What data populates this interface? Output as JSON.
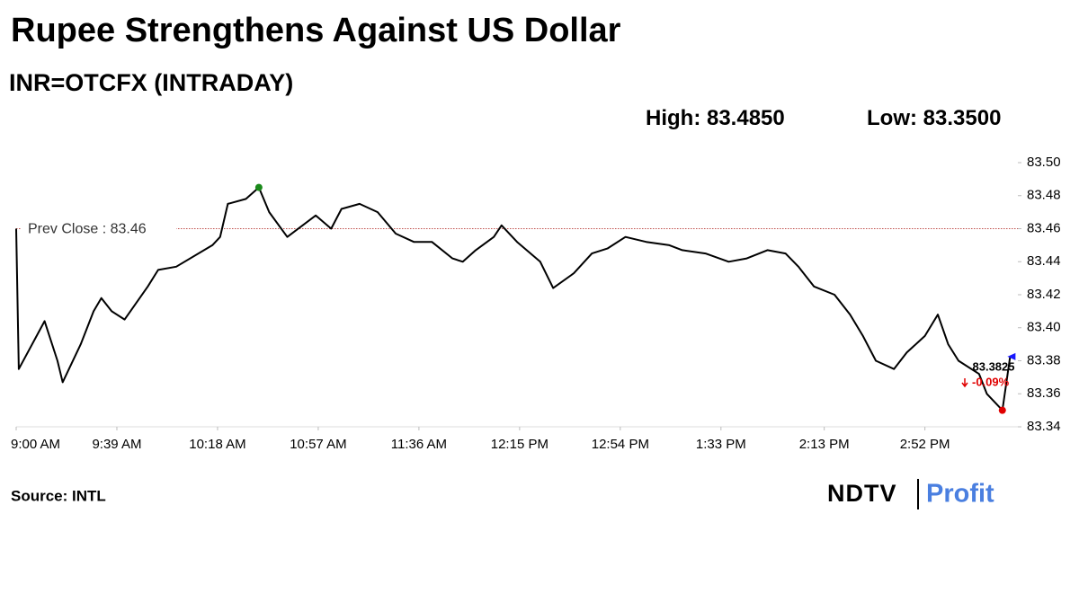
{
  "chart_data": {
    "type": "line",
    "title": "Rupee Strengthens Against US Dollar",
    "subtitle": "INR=OTCFX (INTRADAY)",
    "high": {
      "label": "High:",
      "value": 83.485,
      "value_label": "83.4850"
    },
    "low": {
      "label": "Low:",
      "value": 83.35,
      "value_label": "83.3500"
    },
    "prev_close": {
      "label": "Prev Close :",
      "value": 83.46,
      "value_label": "83.46"
    },
    "last": {
      "value": 83.3825,
      "value_label": "83.3825",
      "change": -0.09,
      "change_label": "-0.09%"
    },
    "x": [
      "9:00 AM",
      "9:01 AM",
      "9:11 AM",
      "9:16 AM",
      "9:18 AM",
      "9:25 AM",
      "9:30 AM",
      "9:33 AM",
      "9:37 AM",
      "9:42 AM",
      "9:51 AM",
      "9:55 AM",
      "10:02 AM",
      "10:16 AM",
      "10:19 AM",
      "10:22 AM",
      "10:29 AM",
      "10:34 AM",
      "10:38 AM",
      "10:45 AM",
      "10:56 AM",
      "11:02 AM",
      "11:06 AM",
      "11:13 AM",
      "11:20 AM",
      "11:27 AM",
      "11:34 AM",
      "11:41 AM",
      "11:49 AM",
      "11:53 AM",
      "11:58 AM",
      "12:05 PM",
      "12:08 PM",
      "12:14 PM",
      "12:23 PM",
      "12:28 PM",
      "12:36 PM",
      "12:43 PM",
      "12:49 PM",
      "12:56 PM",
      "1:04 PM",
      "1:13 PM",
      "1:18 PM",
      "1:27 PM",
      "1:36 PM",
      "1:43 PM",
      "1:51 PM",
      "1:58 PM",
      "2:03 PM",
      "2:09 PM",
      "2:17 PM",
      "2:23 PM",
      "2:28 PM",
      "2:33 PM",
      "2:40 PM",
      "2:45 PM",
      "2:52 PM",
      "2:57 PM",
      "3:01 PM",
      "3:05 PM",
      "3:13 PM",
      "3:16 PM",
      "3:22 PM",
      "3:25 PM"
    ],
    "series": [
      {
        "name": "INR=OTCFX",
        "color": "#000000",
        "values": [
          83.46,
          83.375,
          83.404,
          83.38,
          83.367,
          83.39,
          83.41,
          83.418,
          83.41,
          83.405,
          83.425,
          83.435,
          83.437,
          83.45,
          83.455,
          83.475,
          83.478,
          83.485,
          83.47,
          83.455,
          83.468,
          83.46,
          83.472,
          83.475,
          83.47,
          83.457,
          83.452,
          83.452,
          83.442,
          83.44,
          83.447,
          83.455,
          83.462,
          83.452,
          83.44,
          83.424,
          83.433,
          83.445,
          83.448,
          83.455,
          83.452,
          83.45,
          83.447,
          83.445,
          83.44,
          83.442,
          83.447,
          83.445,
          83.437,
          83.425,
          83.42,
          83.408,
          83.395,
          83.38,
          83.375,
          83.385,
          83.395,
          83.408,
          83.39,
          83.38,
          83.372,
          83.36,
          83.35,
          83.3825
        ]
      }
    ],
    "xlim": [
      "9:00 AM",
      "3:28 PM"
    ],
    "xticks": [
      "9:00 AM",
      "9:39 AM",
      "10:18 AM",
      "10:57 AM",
      "11:36 AM",
      "12:15 PM",
      "12:54 PM",
      "1:33 PM",
      "2:13 PM",
      "2:52 PM"
    ],
    "ylim": [
      83.34,
      83.5
    ],
    "yticks": [
      83.34,
      83.36,
      83.38,
      {
        "value": 83.4,
        "label": "83.40"
      },
      83.42,
      83.44,
      83.46,
      83.48,
      {
        "value": 83.5,
        "label": "83.50"
      }
    ],
    "high_color": "#1a8a1a",
    "low_color": "#e00000",
    "last_color": "#1a1aff",
    "prev_close_color": "#c0504d",
    "source": "Source: INTL",
    "logo": [
      "NDTV",
      "Profit"
    ]
  }
}
